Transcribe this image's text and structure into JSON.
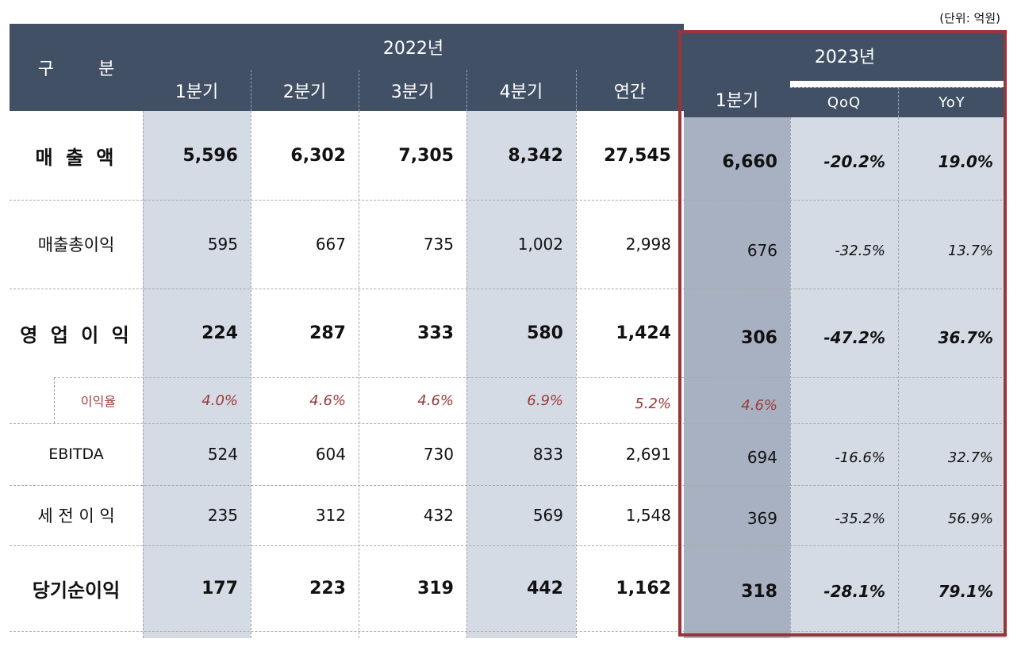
{
  "unit_note": "(단위: 억원)",
  "header": {
    "category": "구 분",
    "category_left": "구",
    "category_right": "분",
    "year_2022": "2022년",
    "year_2023": "2023년",
    "cols": [
      "1분기",
      "2분기",
      "3분기",
      "4분기",
      "연간",
      "1분기",
      "QoQ",
      "YoY"
    ]
  },
  "rows": [
    {
      "label": "매 출 액",
      "values": [
        "5,596",
        "6,302",
        "7,305",
        "8,342",
        "27,545",
        "6,660",
        "-20.2%",
        "19.0%"
      ]
    },
    {
      "label": "매출총이익",
      "values": [
        "595",
        "667",
        "735",
        "1,002",
        "2,998",
        "676",
        "-32.5%",
        "13.7%"
      ]
    },
    {
      "label": "영 업 이 익",
      "values": [
        "224",
        "287",
        "333",
        "580",
        "1,424",
        "306",
        "-47.2%",
        "36.7%"
      ]
    },
    {
      "label": "이익율",
      "values": [
        "4.0%",
        "4.6%",
        "4.6%",
        "6.9%",
        "5.2%",
        "4.6%",
        "",
        ""
      ]
    },
    {
      "label": "EBITDA",
      "values": [
        "524",
        "604",
        "730",
        "833",
        "2,691",
        "694",
        "-16.6%",
        "32.7%"
      ]
    },
    {
      "label": "세 전 이 익",
      "values": [
        "235",
        "312",
        "432",
        "569",
        "1,548",
        "369",
        "-35.2%",
        "56.9%"
      ]
    },
    {
      "label": "당기순이익",
      "values": [
        "177",
        "223",
        "319",
        "442",
        "1,162",
        "318",
        "-28.1%",
        "79.1%"
      ]
    }
  ],
  "colors": {
    "header_bg": "#425066",
    "highlight_border": "#9b3438",
    "margin_text": "#9b3b3b",
    "shade_light": "#d5dbe4",
    "shade_dark": "#a8b1c1"
  }
}
